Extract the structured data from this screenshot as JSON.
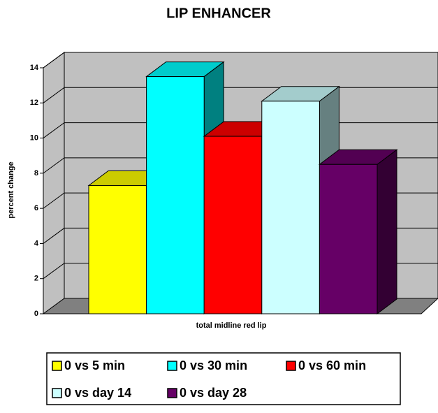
{
  "chart_data": {
    "type": "bar3d",
    "title": "LIP ENHANCER",
    "y_label": "percent change",
    "categories": [
      "total midline red lip"
    ],
    "series": [
      {
        "name": "0 vs 5 min",
        "color": "#ffff00",
        "values": [
          7.3
        ]
      },
      {
        "name": "0 vs 30 min",
        "color": "#00ffff",
        "values": [
          13.5
        ]
      },
      {
        "name": "0 vs 60 min",
        "color": "#ff0000",
        "values": [
          10.1
        ]
      },
      {
        "name": "0 vs day 14",
        "color": "#ccffff",
        "values": [
          12.1
        ]
      },
      {
        "name": "0 vs day 28",
        "color": "#660066",
        "values": [
          8.5
        ]
      }
    ],
    "ylim": [
      0,
      14
    ],
    "yticks": [
      0,
      2,
      4,
      6,
      8,
      10,
      12,
      14
    ],
    "grid": true
  }
}
